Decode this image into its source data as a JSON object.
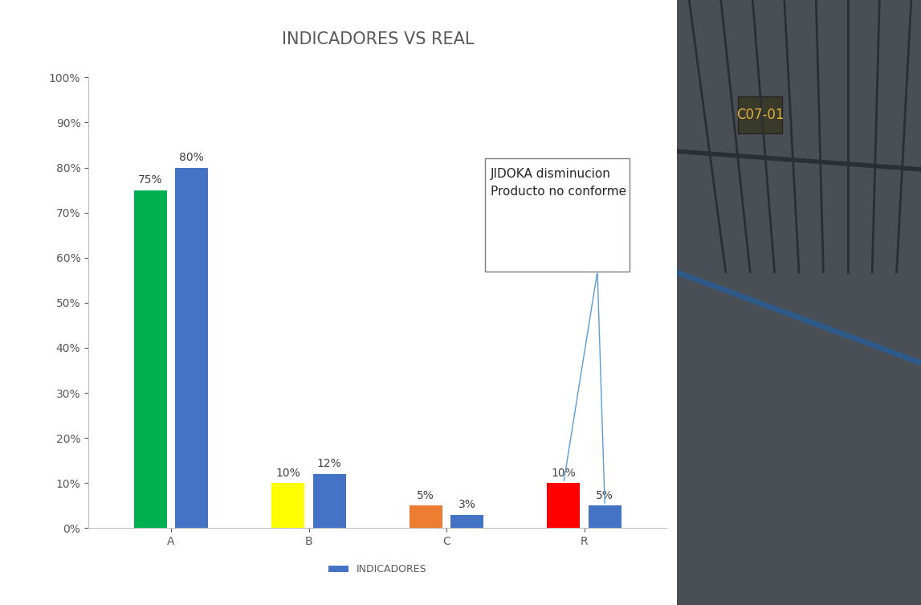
{
  "chart_data": {
    "type": "bar",
    "title": "INDICADORES VS REAL",
    "categories": [
      "A",
      "B",
      "C",
      "R"
    ],
    "series": [
      {
        "colors": [
          "#00b050",
          "#ffff00",
          "#ed7d31",
          "#ff0000"
        ],
        "values": [
          75,
          10,
          5,
          10
        ],
        "value_labels": [
          "75%",
          "10%",
          "5%",
          "10%"
        ]
      },
      {
        "name": "INDICADORES",
        "color": "#4472c4",
        "values": [
          80,
          12,
          3,
          5
        ],
        "value_labels": [
          "80%",
          "12%",
          "3%",
          "5%"
        ]
      }
    ],
    "ylim": [
      0,
      100
    ],
    "yticks": [
      {
        "value": 0,
        "label": "0%"
      },
      {
        "value": 10,
        "label": "10%"
      },
      {
        "value": 20,
        "label": "20%"
      },
      {
        "value": 30,
        "label": "30%"
      },
      {
        "value": 40,
        "label": "40%"
      },
      {
        "value": 50,
        "label": "50%"
      },
      {
        "value": 60,
        "label": "60%"
      },
      {
        "value": 70,
        "label": "70%"
      },
      {
        "value": 80,
        "label": "80%"
      },
      {
        "value": 90,
        "label": "90%"
      },
      {
        "value": 100,
        "label": "100%"
      }
    ],
    "grid": false,
    "data_labels": true,
    "legend": "bottom",
    "annotations": [
      {
        "text": "JIDOKA disminucion\nProducto no conforme",
        "category": "R"
      }
    ],
    "photo": {
      "sign": "C07-01"
    }
  }
}
